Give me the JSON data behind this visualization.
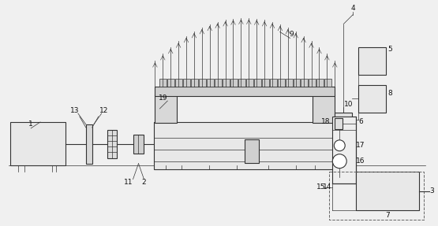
{
  "bg_color": "#f0f0f0",
  "line_color": "#333333",
  "lw": 0.8,
  "tlw": 0.5,
  "fig_width": 5.55,
  "fig_height": 2.87,
  "dpi": 100
}
